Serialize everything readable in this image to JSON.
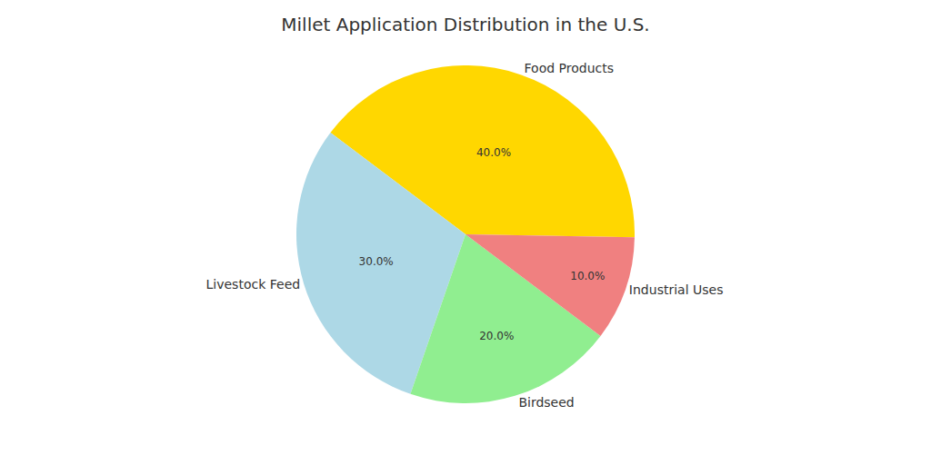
{
  "chart_data": {
    "type": "pie",
    "title": "Millet Application Distribution in the U.S.",
    "categories": [
      "Food Products",
      "Livestock Feed",
      "Birdseed",
      "Industrial Uses"
    ],
    "values": [
      40,
      30,
      20,
      10
    ],
    "value_labels": [
      "40.0%",
      "30.0%",
      "20.0%",
      "10.0%"
    ],
    "colors": [
      "#ffd700",
      "#add8e6",
      "#90ee90",
      "#f08080"
    ],
    "data_labels": true
  }
}
